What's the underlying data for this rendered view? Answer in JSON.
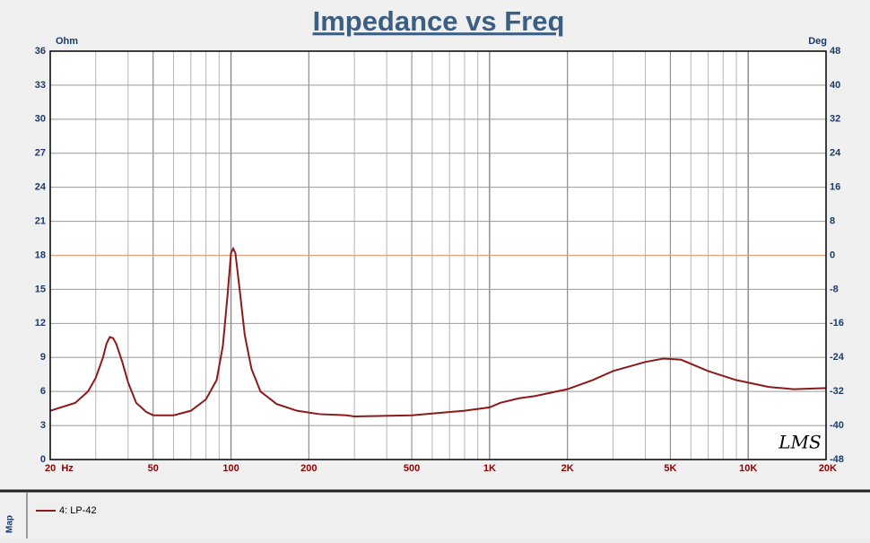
{
  "chart_data": {
    "type": "line",
    "title": "Impedance vs Freq",
    "y_label": "Ohm",
    "y2_label": "Deg",
    "watermark": "LMS",
    "side_label": "Map",
    "x_scale": "log",
    "grid": true,
    "xlim": [
      20,
      20000
    ],
    "xticks": [
      {
        "value": 20,
        "label": "20  Hz"
      },
      50,
      100,
      200,
      500,
      {
        "value": 1000,
        "label": "1K"
      },
      {
        "value": 2000,
        "label": "2K"
      },
      {
        "value": 5000,
        "label": "5K"
      },
      {
        "value": 10000,
        "label": "10K"
      },
      {
        "value": 20000,
        "label": "20K"
      }
    ],
    "ylim": [
      0,
      36
    ],
    "yticks": [
      0,
      3,
      6,
      9,
      12,
      15,
      18,
      21,
      24,
      27,
      30,
      33,
      36
    ],
    "y2lim": [
      -48,
      48
    ],
    "y2ticks": [
      -48,
      -40,
      -32,
      -24,
      -16,
      -8,
      0,
      8,
      16,
      24,
      32,
      40,
      48
    ],
    "x": [
      20,
      25,
      28,
      30,
      32,
      33,
      34,
      35,
      36,
      38,
      40,
      43,
      47,
      50,
      60,
      70,
      80,
      88,
      93,
      97,
      100,
      102,
      104,
      108,
      113,
      120,
      130,
      150,
      180,
      220,
      280,
      300,
      500,
      800,
      1000,
      1100,
      1300,
      1500,
      2000,
      2500,
      3000,
      4000,
      4700,
      5500,
      7000,
      9000,
      12000,
      15000,
      20000
    ],
    "series": [
      {
        "name": "4: LP-42",
        "color": "#8b1a1a",
        "values": [
          4.3,
          5.0,
          6.0,
          7.2,
          9.0,
          10.2,
          10.8,
          10.7,
          10.2,
          8.6,
          6.8,
          5.0,
          4.2,
          3.9,
          3.9,
          4.3,
          5.3,
          7.0,
          10.0,
          14.5,
          18.2,
          18.6,
          18.2,
          15.0,
          11.0,
          8.0,
          6.0,
          4.9,
          4.3,
          4.0,
          3.9,
          3.8,
          3.9,
          4.3,
          4.6,
          5.0,
          5.4,
          5.6,
          6.2,
          7.0,
          7.8,
          8.6,
          8.9,
          8.8,
          7.8,
          7.0,
          6.4,
          6.2,
          6.3
        ]
      }
    ]
  }
}
